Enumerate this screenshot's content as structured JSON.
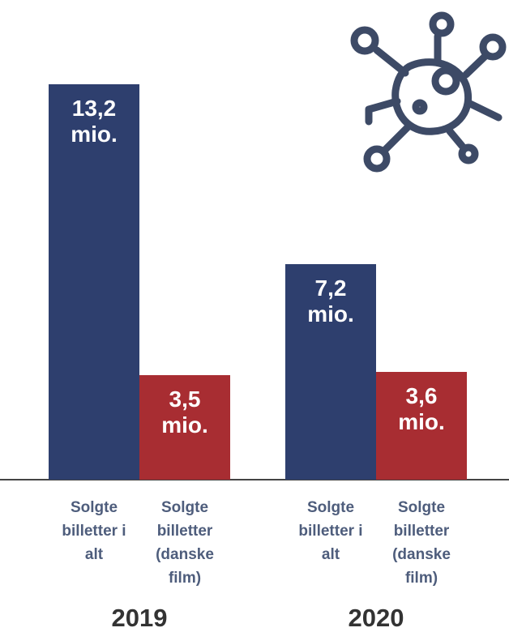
{
  "chart_data": {
    "type": "bar",
    "categories": [
      "2019",
      "2020"
    ],
    "series": [
      {
        "name": "Solgte billetter i alt",
        "color": "#2e3f6e",
        "values": [
          13.2,
          7.2
        ],
        "value_labels": [
          "13,2 mio.",
          "7,2 mio."
        ]
      },
      {
        "name": "Solgte billetter (danske film)",
        "color": "#a82d32",
        "values": [
          3.5,
          3.6
        ],
        "value_labels": [
          "3,5 mio.",
          "3,6 mio."
        ]
      }
    ]
  }
}
